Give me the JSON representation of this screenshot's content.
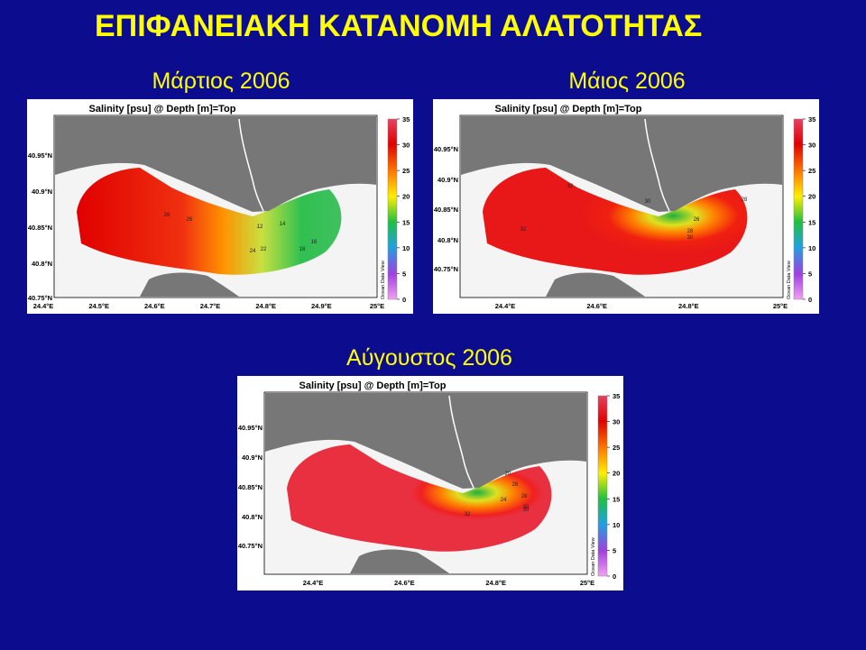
{
  "title": "ΕΠΙΦΑΝΕΙΑΚΗ ΚΑΤΑΝΟΜΗ ΑΛΑΤΟΤΗΤΑΣ",
  "panels": [
    {
      "subtitle": "Μάρτιος 2006",
      "map_title": "Salinity [psu] @ Depth [m]=Top",
      "side_label": "Ocean Data View",
      "lat_labels": [
        "40.95°N",
        "40.9°N",
        "40.85°N",
        "40.8°N",
        "40.75°N"
      ],
      "lon_labels": [
        "24.4°E",
        "24.5°E",
        "24.6°E",
        "24.7°E",
        "24.8°E",
        "24.9°E",
        "25°E"
      ],
      "colorbar_ticks": [
        35,
        30,
        25,
        20,
        15,
        10,
        5,
        0
      ],
      "contour_labels": [
        26,
        26,
        24,
        22,
        18,
        16,
        14,
        12
      ]
    },
    {
      "subtitle": "Μάιος 2006",
      "map_title": "Salinity [psu] @ Depth [m]=Top",
      "side_label": "Ocean Data View",
      "lat_labels": [
        "40.95°N",
        "40.9°N",
        "40.85°N",
        "40.8°N",
        "40.75°N"
      ],
      "lon_labels": [
        "24.4°E",
        "24.6°E",
        "24.8°E",
        "25°E"
      ],
      "colorbar_ticks": [
        35,
        30,
        25,
        20,
        15,
        10,
        5,
        0
      ],
      "contour_labels": [
        32,
        32,
        30,
        28,
        26,
        28,
        30
      ]
    },
    {
      "subtitle": "Αύγουστος 2006",
      "map_title": "Salinity [psu] @ Depth [m]=Top",
      "side_label": "Ocean Data View",
      "lat_labels": [
        "40.95°N",
        "40.9°N",
        "40.85°N",
        "40.8°N",
        "40.75°N"
      ],
      "lon_labels": [
        "24.4°E",
        "24.6°E",
        "24.8°E",
        "25°E"
      ],
      "colorbar_ticks": [
        35,
        30,
        25,
        20,
        15,
        10,
        5,
        0
      ],
      "contour_labels": [
        32,
        30,
        28,
        26,
        24,
        20,
        30
      ]
    }
  ]
}
